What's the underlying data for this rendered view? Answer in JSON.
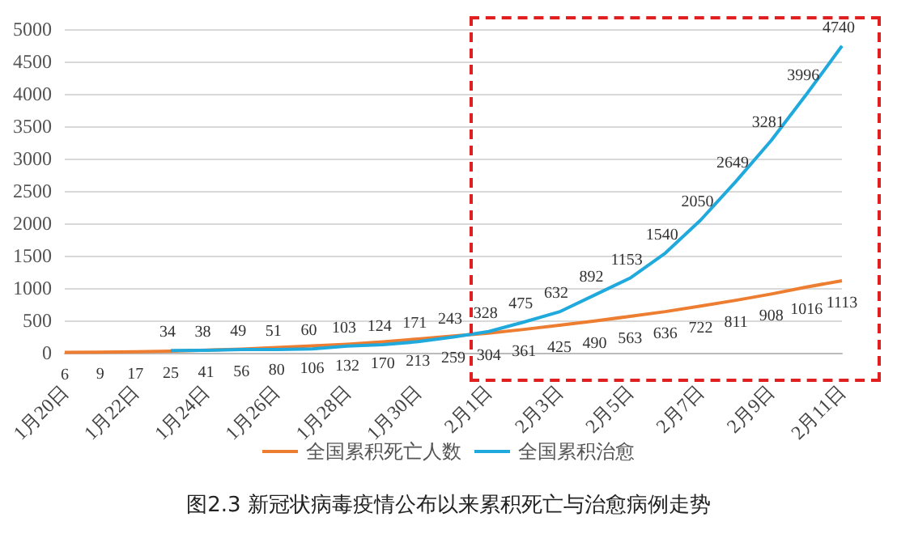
{
  "chart_data": {
    "type": "line",
    "title": "图2.3 新冠状病毒疫情公布以来累积死亡与治愈病例走势",
    "categories": [
      "1月20日",
      null,
      "1月22日",
      null,
      "1月24日",
      null,
      "1月26日",
      null,
      "1月28日",
      null,
      "1月30日",
      null,
      "2月1日",
      null,
      "2月3日",
      null,
      "2月5日",
      null,
      "2月7日",
      null,
      "2月9日",
      null,
      "2月11日"
    ],
    "series": [
      {
        "name": "全国累积死亡人数",
        "color": "#ed7d31",
        "values": [
          6,
          9,
          17,
          25,
          41,
          56,
          80,
          106,
          132,
          170,
          213,
          259,
          304,
          361,
          425,
          490,
          563,
          636,
          722,
          811,
          908,
          1016,
          1113
        ]
      },
      {
        "name": "全国累积治愈",
        "color": "#1fa9dc",
        "values": [
          null,
          null,
          null,
          34,
          38,
          49,
          51,
          60,
          103,
          124,
          171,
          243,
          328,
          475,
          632,
          892,
          1153,
          1540,
          2050,
          2649,
          3281,
          3996,
          4740
        ]
      }
    ],
    "ylim": [
      0,
      5000
    ],
    "yticks": [
      0,
      500,
      1000,
      1500,
      2000,
      2500,
      3000,
      3500,
      4000,
      4500,
      5000
    ],
    "grid": "y",
    "legend": "bottom",
    "data_labels": true
  }
}
